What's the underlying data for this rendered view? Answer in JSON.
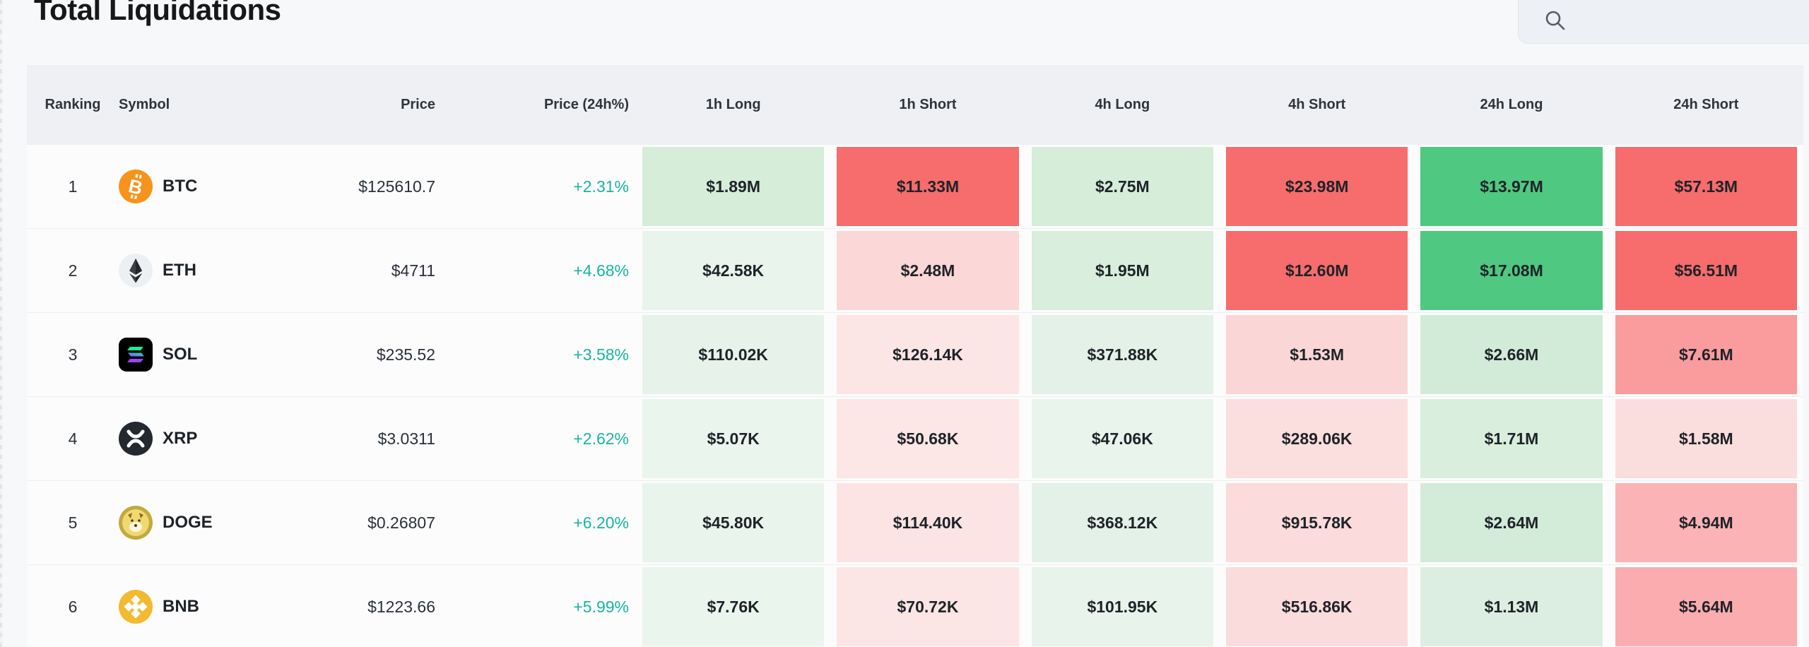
{
  "page": {
    "title": "Total Liquidations"
  },
  "search": {
    "placeholder": "",
    "value": ""
  },
  "colors": {
    "change_positive": "#17b5a0",
    "strong_green": "#4fc881",
    "strong_red": "#f76c6c",
    "header_bg": "#eef0f3"
  },
  "table": {
    "headers": [
      "Ranking",
      "Symbol",
      "Price",
      "Price (24h%)",
      "1h Long",
      "1h Short",
      "4h Long",
      "4h Short",
      "24h Long",
      "24h Short"
    ],
    "rows": [
      {
        "rank": "1",
        "symbol": "BTC",
        "icon": "btc",
        "price": "$125610.7",
        "change": "+2.31%",
        "cells": [
          {
            "value": "$1.89M",
            "bg": "#d5edd9"
          },
          {
            "value": "$11.33M",
            "bg": "#f76c6c"
          },
          {
            "value": "$2.75M",
            "bg": "#d5edd9"
          },
          {
            "value": "$23.98M",
            "bg": "#f76c6c"
          },
          {
            "value": "$13.97M",
            "bg": "#4fc881"
          },
          {
            "value": "$57.13M",
            "bg": "#f76c6c"
          }
        ]
      },
      {
        "rank": "2",
        "symbol": "ETH",
        "icon": "eth",
        "price": "$4711",
        "change": "+4.68%",
        "cells": [
          {
            "value": "$42.58K",
            "bg": "#e9f4ec"
          },
          {
            "value": "$2.48M",
            "bg": "#fbd7d7"
          },
          {
            "value": "$1.95M",
            "bg": "#d9eedd"
          },
          {
            "value": "$12.60M",
            "bg": "#f76c6c"
          },
          {
            "value": "$17.08M",
            "bg": "#4fc881"
          },
          {
            "value": "$56.51M",
            "bg": "#f76c6c"
          }
        ]
      },
      {
        "rank": "3",
        "symbol": "SOL",
        "icon": "sol",
        "price": "$235.52",
        "change": "+3.58%",
        "cells": [
          {
            "value": "$110.02K",
            "bg": "#e6f2ea"
          },
          {
            "value": "$126.14K",
            "bg": "#fce5e5"
          },
          {
            "value": "$371.88K",
            "bg": "#e4f1e8"
          },
          {
            "value": "$1.53M",
            "bg": "#fbd6d6"
          },
          {
            "value": "$2.66M",
            "bg": "#d2ebd8"
          },
          {
            "value": "$7.61M",
            "bg": "#fa9b9d"
          }
        ]
      },
      {
        "rank": "4",
        "symbol": "XRP",
        "icon": "xrp",
        "price": "$3.0311",
        "change": "+2.62%",
        "cells": [
          {
            "value": "$5.07K",
            "bg": "#eaf5ee"
          },
          {
            "value": "$50.68K",
            "bg": "#fce6e6"
          },
          {
            "value": "$47.06K",
            "bg": "#e9f4ec"
          },
          {
            "value": "$289.06K",
            "bg": "#fbdede"
          },
          {
            "value": "$1.71M",
            "bg": "#d9eedd"
          },
          {
            "value": "$1.58M",
            "bg": "#fadddd"
          }
        ]
      },
      {
        "rank": "5",
        "symbol": "DOGE",
        "icon": "doge",
        "price": "$0.26807",
        "change": "+6.20%",
        "cells": [
          {
            "value": "$45.80K",
            "bg": "#e9f4ec"
          },
          {
            "value": "$114.40K",
            "bg": "#fce4e4"
          },
          {
            "value": "$368.12K",
            "bg": "#e4f1e8"
          },
          {
            "value": "$915.78K",
            "bg": "#fbdbdb"
          },
          {
            "value": "$2.64M",
            "bg": "#d3ebd9"
          },
          {
            "value": "$4.94M",
            "bg": "#fbb3b5"
          }
        ]
      },
      {
        "rank": "6",
        "symbol": "BNB",
        "icon": "bnb",
        "price": "$1223.66",
        "change": "+5.99%",
        "cells": [
          {
            "value": "$7.76K",
            "bg": "#eaf5ee"
          },
          {
            "value": "$70.72K",
            "bg": "#fce5e5"
          },
          {
            "value": "$101.95K",
            "bg": "#e7f3eb"
          },
          {
            "value": "$516.86K",
            "bg": "#fbdcdc"
          },
          {
            "value": "$1.13M",
            "bg": "#dceee1"
          },
          {
            "value": "$5.64M",
            "bg": "#fbacae"
          }
        ]
      }
    ]
  }
}
